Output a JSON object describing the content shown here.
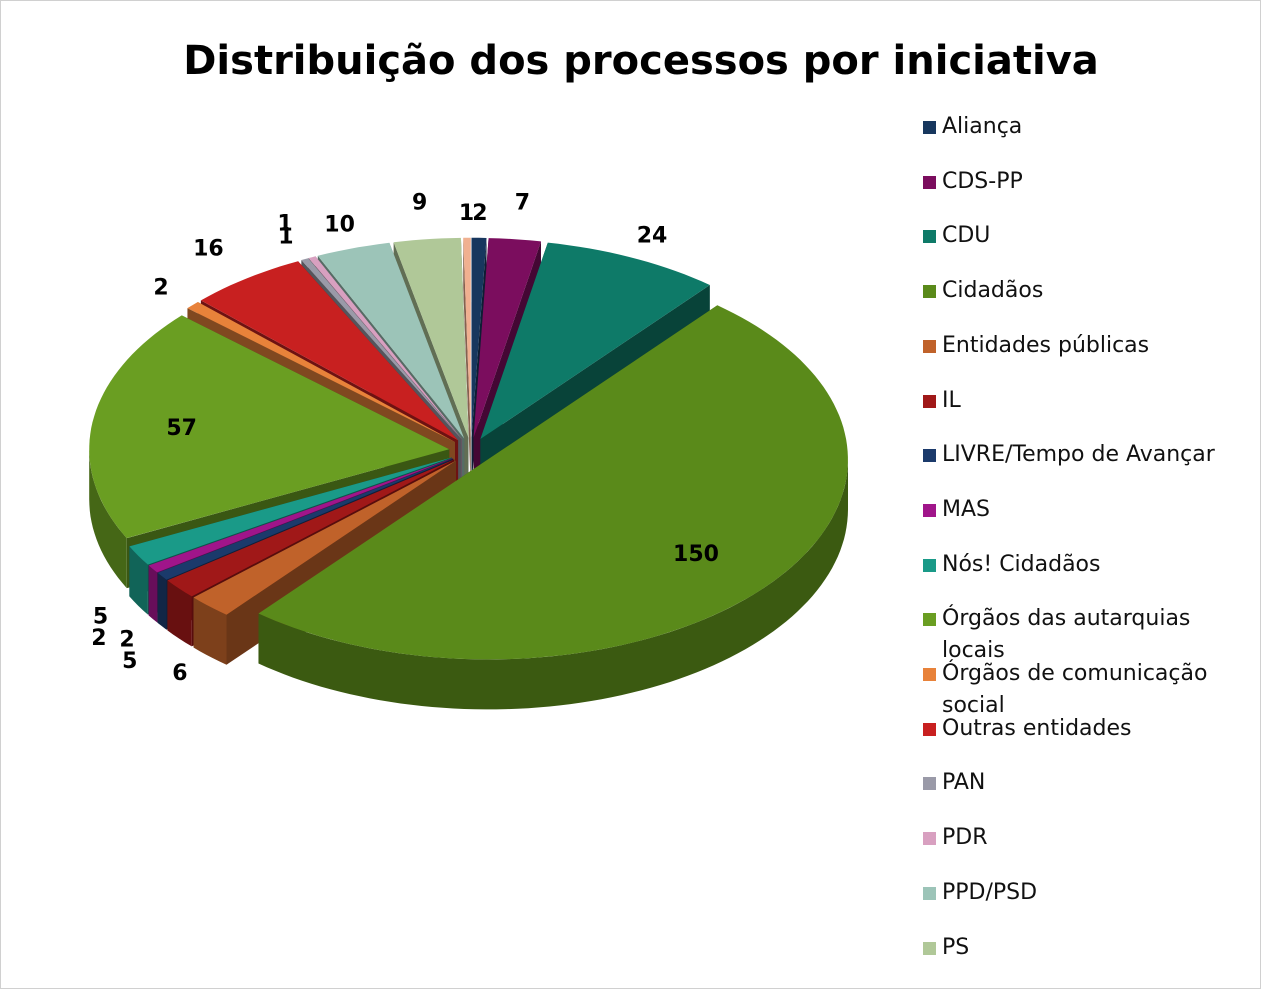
{
  "chart_data": {
    "type": "pie3d",
    "title": "Distribuição dos processos por iniciativa",
    "categories": [
      "Aliança",
      "CDS-PP",
      "CDU",
      "Cidadãos",
      "Entidades públicas",
      "IL",
      "LIVRE/Tempo de Avançar",
      "MAS",
      "Nós! Cidadãos",
      "Órgãos das autarquias locais",
      "Órgãos de comunicação social",
      "Outras entidades",
      "PAN",
      "PDR",
      "PPD/PSD",
      "PS",
      null
    ],
    "values": [
      2,
      7,
      24,
      150,
      6,
      5,
      2,
      2,
      5,
      57,
      2,
      16,
      1,
      1,
      10,
      9,
      1
    ],
    "colors": [
      "#17375e",
      "#7b0d5e",
      "#0e7a68",
      "#5a8a1a",
      "#c0622a",
      "#a01818",
      "#1b3a6b",
      "#a0158a",
      "#1a9a88",
      "#6a9e22",
      "#e8823a",
      "#c82020",
      "#9a9aa8",
      "#d8a0c0",
      "#9cc4b8",
      "#b0c898",
      "#f0b090"
    ],
    "legend": "right"
  }
}
